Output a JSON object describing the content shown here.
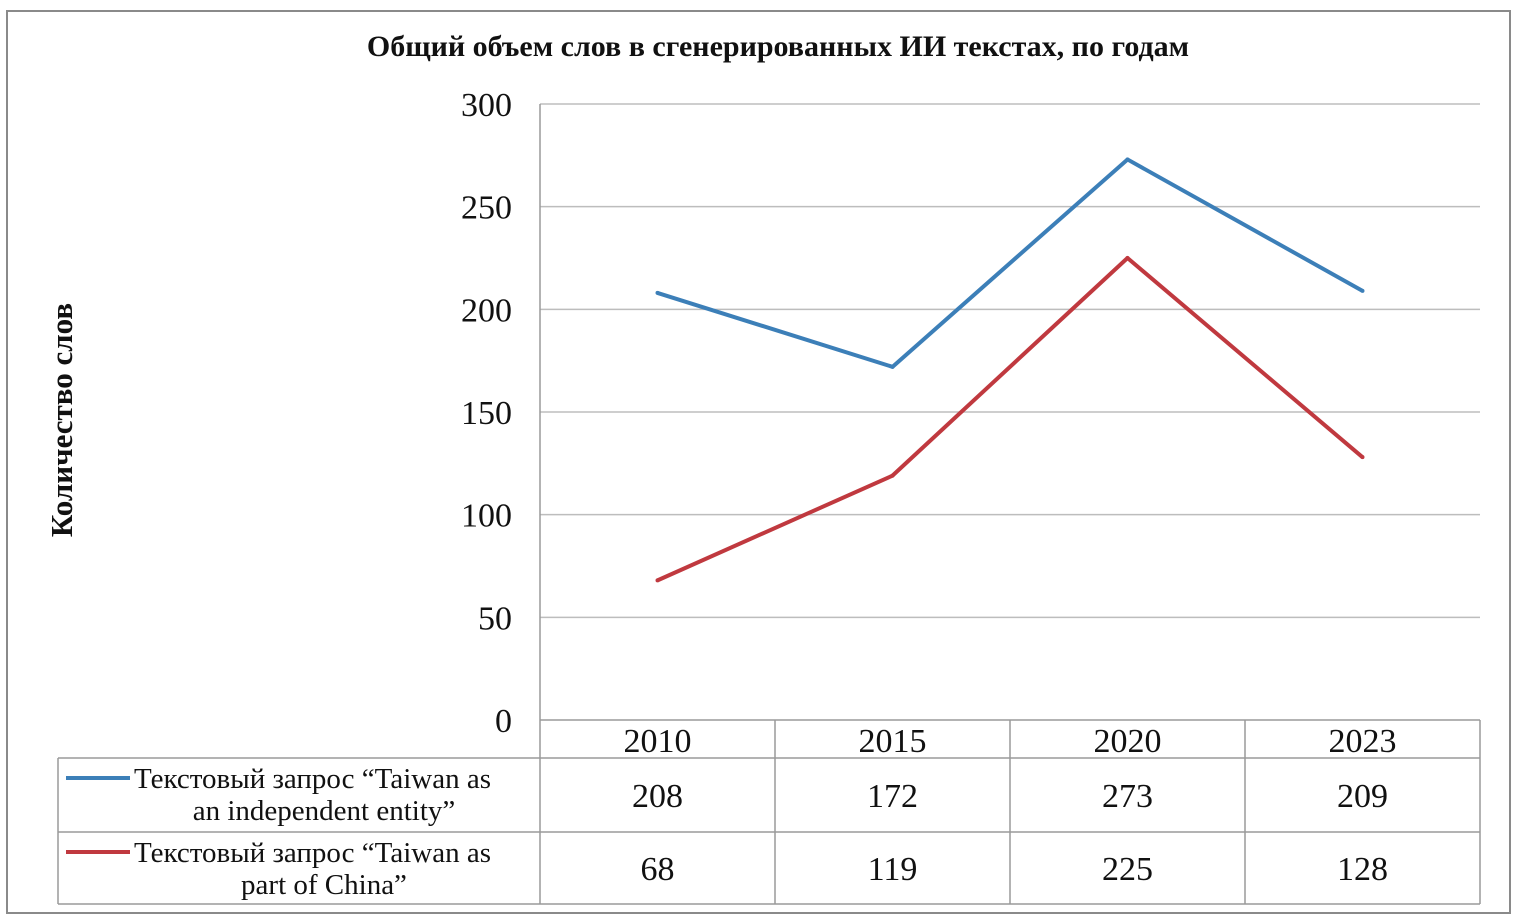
{
  "chart_data": {
    "type": "line",
    "title": "Общий объем слов в сгенерированных ИИ текстах, по годам",
    "xlabel": "",
    "ylabel": "Количество слов",
    "ylim": [
      0,
      300
    ],
    "yticks": [
      "0",
      "50",
      "100",
      "150",
      "200",
      "250",
      "300"
    ],
    "grid": true,
    "legend": "data-table-left",
    "categories": [
      "2010",
      "2015",
      "2020",
      "2023"
    ],
    "series": [
      {
        "name_lines": [
          "Текстовый запрос “Taiwan as",
          "an independent entity”"
        ],
        "values": [
          208,
          172,
          273,
          209
        ],
        "color": "#3c7fb8"
      },
      {
        "name_lines": [
          "Текстовый запрос “Taiwan as",
          "part of China”"
        ],
        "values": [
          68,
          119,
          225,
          128
        ],
        "color": "#c0393f"
      }
    ]
  }
}
